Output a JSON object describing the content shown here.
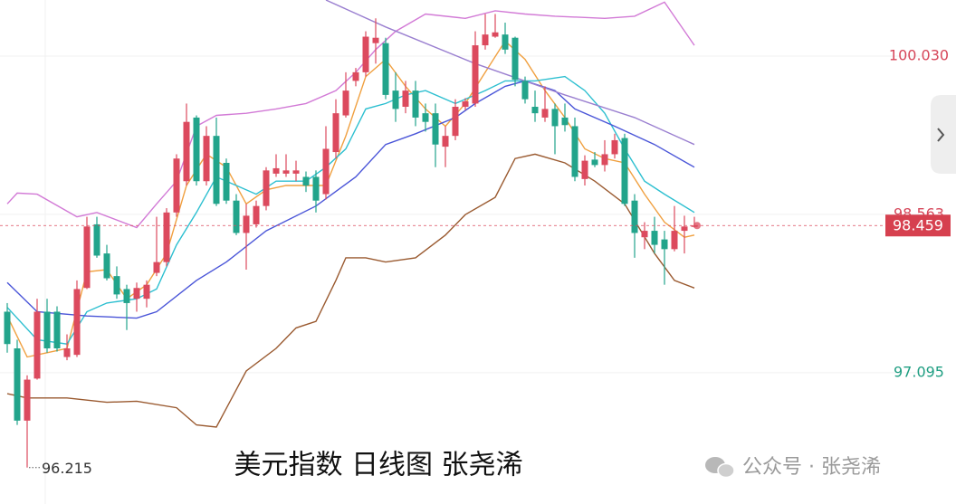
{
  "chart_data": {
    "type": "candlestick",
    "up_color": "#dc4a5e",
    "down_color": "#22a48b",
    "open": [
      97.66,
      97.32,
      96.65,
      97.04,
      97.66,
      97.66,
      97.24,
      97.26,
      97.88,
      98.47,
      98.2,
      97.99,
      97.87,
      97.78,
      97.78,
      98.02,
      98.12,
      98.58,
      98.87,
      99.46,
      98.87,
      99.29,
      99.04,
      98.69,
      98.39,
      98.47,
      98.64,
      98.94,
      98.94,
      98.94,
      98.91,
      98.91,
      98.75,
      99.14,
      99.48,
      99.8,
      99.88,
      100.15,
      100.15,
      99.71,
      99.56,
      99.71,
      99.5,
      99.5,
      99.19,
      99.29,
      99.56,
      99.59,
      100.13,
      100.21,
      100.23,
      100.2,
      99.8,
      99.56,
      99.46,
      99.54,
      99.46,
      99.38,
      98.89,
      99.07,
      99.02,
      99.12,
      99.27,
      98.69,
      98.35,
      98.41,
      98.33,
      98.24,
      98.41,
      98.45
    ],
    "high": [
      97.74,
      97.4,
      97.07,
      97.78,
      97.78,
      97.71,
      97.45,
      97.95,
      98.54,
      98.54,
      98.28,
      98.08,
      97.91,
      97.93,
      97.95,
      98.54,
      98.62,
      99.12,
      99.59,
      99.48,
      99.38,
      99.46,
      99.08,
      98.75,
      98.66,
      98.69,
      99.0,
      99.12,
      99.12,
      99.06,
      98.96,
      98.97,
      99.38,
      99.63,
      99.88,
      99.92,
      100.26,
      100.38,
      100.2,
      99.88,
      99.8,
      99.8,
      99.59,
      99.59,
      99.38,
      99.63,
      99.64,
      100.26,
      100.42,
      100.42,
      100.34,
      100.21,
      99.84,
      99.71,
      99.75,
      99.59,
      99.59,
      99.46,
      99.11,
      99.14,
      99.25,
      99.31,
      99.31,
      98.75,
      98.49,
      98.54,
      98.41,
      98.64,
      98.55,
      98.54
    ],
    "low": [
      97.28,
      96.61,
      96.215,
      97.03,
      97.28,
      97.29,
      97.21,
      97.24,
      97.87,
      98.16,
      97.95,
      97.78,
      97.49,
      97.66,
      97.7,
      97.99,
      98.08,
      98.54,
      98.83,
      98.83,
      98.83,
      98.64,
      98.66,
      98.37,
      98.05,
      98.44,
      98.6,
      98.91,
      98.91,
      98.87,
      98.77,
      98.58,
      98.7,
      99.08,
      99.46,
      99.75,
      99.84,
      99.96,
      99.63,
      99.42,
      99.5,
      99.38,
      99.33,
      99.0,
      99.0,
      99.25,
      99.53,
      99.56,
      100.09,
      100.2,
      100.05,
      99.75,
      99.59,
      99.42,
      99.42,
      99.12,
      99.33,
      98.87,
      98.83,
      99.0,
      98.96,
      99.08,
      98.64,
      98.16,
      98.24,
      98.2,
      97.91,
      98.22,
      98.2,
      98.44
    ],
    "close": [
      97.36,
      96.65,
      97.03,
      97.66,
      97.32,
      97.32,
      97.32,
      97.87,
      98.45,
      98.18,
      97.97,
      97.82,
      97.74,
      97.88,
      97.91,
      98.12,
      98.58,
      99.08,
      99.42,
      98.87,
      99.29,
      98.66,
      98.69,
      98.39,
      98.55,
      98.64,
      98.97,
      98.99,
      98.97,
      98.97,
      98.83,
      98.69,
      99.17,
      99.5,
      99.71,
      99.88,
      100.21,
      100.2,
      99.67,
      99.54,
      99.71,
      99.46,
      99.42,
      99.21,
      99.29,
      99.56,
      99.61,
      100.13,
      100.23,
      100.25,
      100.09,
      99.81,
      99.63,
      99.5,
      99.54,
      99.38,
      99.39,
      98.91,
      99.06,
      99.02,
      99.12,
      99.25,
      98.66,
      98.39,
      98.41,
      98.28,
      98.24,
      98.41,
      98.45,
      98.459
    ],
    "lines": [
      {
        "color": "#d27ad6",
        "x": [
          0,
          1,
          3,
          7,
          9,
          13,
          15,
          17,
          19,
          21,
          24,
          27,
          30,
          33,
          35,
          37,
          39,
          42,
          46,
          49,
          52,
          55,
          60,
          63,
          66,
          69
        ],
        "values": [
          98.66,
          98.76,
          98.75,
          98.54,
          98.58,
          98.44,
          98.66,
          98.87,
          99.38,
          99.48,
          99.5,
          99.54,
          99.59,
          99.71,
          99.88,
          100.09,
          100.26,
          100.42,
          100.38,
          100.45,
          100.42,
          100.4,
          100.38,
          100.4,
          100.53,
          100.13
        ]
      },
      {
        "color": "#9a5a30",
        "x": [
          0,
          2,
          6,
          10,
          13,
          17,
          19,
          21,
          24,
          27,
          29,
          31,
          33,
          34,
          36,
          38,
          41,
          44,
          46,
          49,
          51,
          53,
          56,
          59,
          62,
          65,
          67,
          69
        ],
        "values": [
          96.9,
          96.86,
          96.86,
          96.82,
          96.83,
          96.77,
          96.61,
          96.59,
          97.11,
          97.32,
          97.51,
          97.57,
          97.95,
          98.16,
          98.16,
          98.12,
          98.16,
          98.37,
          98.56,
          98.72,
          99.08,
          99.12,
          99.04,
          98.87,
          98.66,
          98.2,
          97.95,
          97.88
        ]
      },
      {
        "color": "#f0a040",
        "x": [
          0,
          2,
          4,
          6,
          8,
          10,
          12,
          14,
          16,
          18,
          20,
          22,
          24,
          26,
          28,
          30,
          32,
          34,
          36,
          38,
          40,
          42,
          44,
          46,
          48,
          50,
          52,
          54,
          56,
          58,
          60,
          62,
          64,
          66,
          68,
          69
        ],
        "values": [
          97.62,
          97.24,
          97.28,
          97.32,
          98.03,
          98.05,
          97.78,
          97.91,
          98.2,
          98.83,
          99.12,
          99.0,
          98.66,
          98.79,
          98.83,
          98.83,
          98.83,
          99.29,
          99.84,
          100.0,
          99.75,
          99.54,
          99.38,
          99.59,
          99.88,
          100.17,
          100.0,
          99.71,
          99.46,
          99.17,
          99.08,
          99.04,
          98.75,
          98.49,
          98.35,
          98.37
        ]
      },
      {
        "color": "#2cbfd0",
        "x": [
          0,
          3,
          6,
          8,
          10,
          13,
          15,
          17,
          19,
          21,
          23,
          25,
          27,
          30,
          32,
          34,
          36,
          38,
          40,
          42,
          45,
          48,
          50,
          53,
          56,
          58,
          60,
          62,
          64,
          66,
          69
        ],
        "values": [
          97.7,
          97.4,
          97.36,
          97.66,
          97.74,
          97.78,
          97.87,
          98.28,
          98.58,
          98.91,
          98.83,
          98.75,
          98.87,
          98.87,
          99.0,
          99.17,
          99.54,
          99.59,
          99.67,
          99.71,
          99.59,
          99.71,
          99.8,
          99.8,
          99.84,
          99.71,
          99.5,
          99.17,
          98.87,
          98.75,
          98.58
        ]
      },
      {
        "color": "#4a55d8",
        "x": [
          0,
          3,
          8,
          13,
          15,
          19,
          22,
          26,
          31,
          35,
          38,
          41,
          45,
          47,
          50,
          52,
          55,
          57,
          61,
          65,
          69
        ],
        "values": [
          97.93,
          97.66,
          97.62,
          97.6,
          97.66,
          97.95,
          98.12,
          98.41,
          98.64,
          98.91,
          99.21,
          99.31,
          99.46,
          99.59,
          99.75,
          99.8,
          99.71,
          99.54,
          99.38,
          99.21,
          99.0
        ]
      },
      {
        "color": "#9a7fd0",
        "x": [
          32,
          38,
          47,
          56,
          63,
          69
        ],
        "values": [
          100.55,
          100.3,
          99.96,
          99.67,
          99.46,
          99.21
        ]
      }
    ],
    "ylim": [
      95.877,
      100.55
    ],
    "yticks": [
      {
        "value": 100.03,
        "label": "100.030"
      },
      98.563,
      97.095
    ],
    "last_price": 98.459,
    "low_label": 96.215,
    "caption": "美元指数 日线图 张尧浠",
    "watermark": "公众号 · 张尧浠"
  }
}
